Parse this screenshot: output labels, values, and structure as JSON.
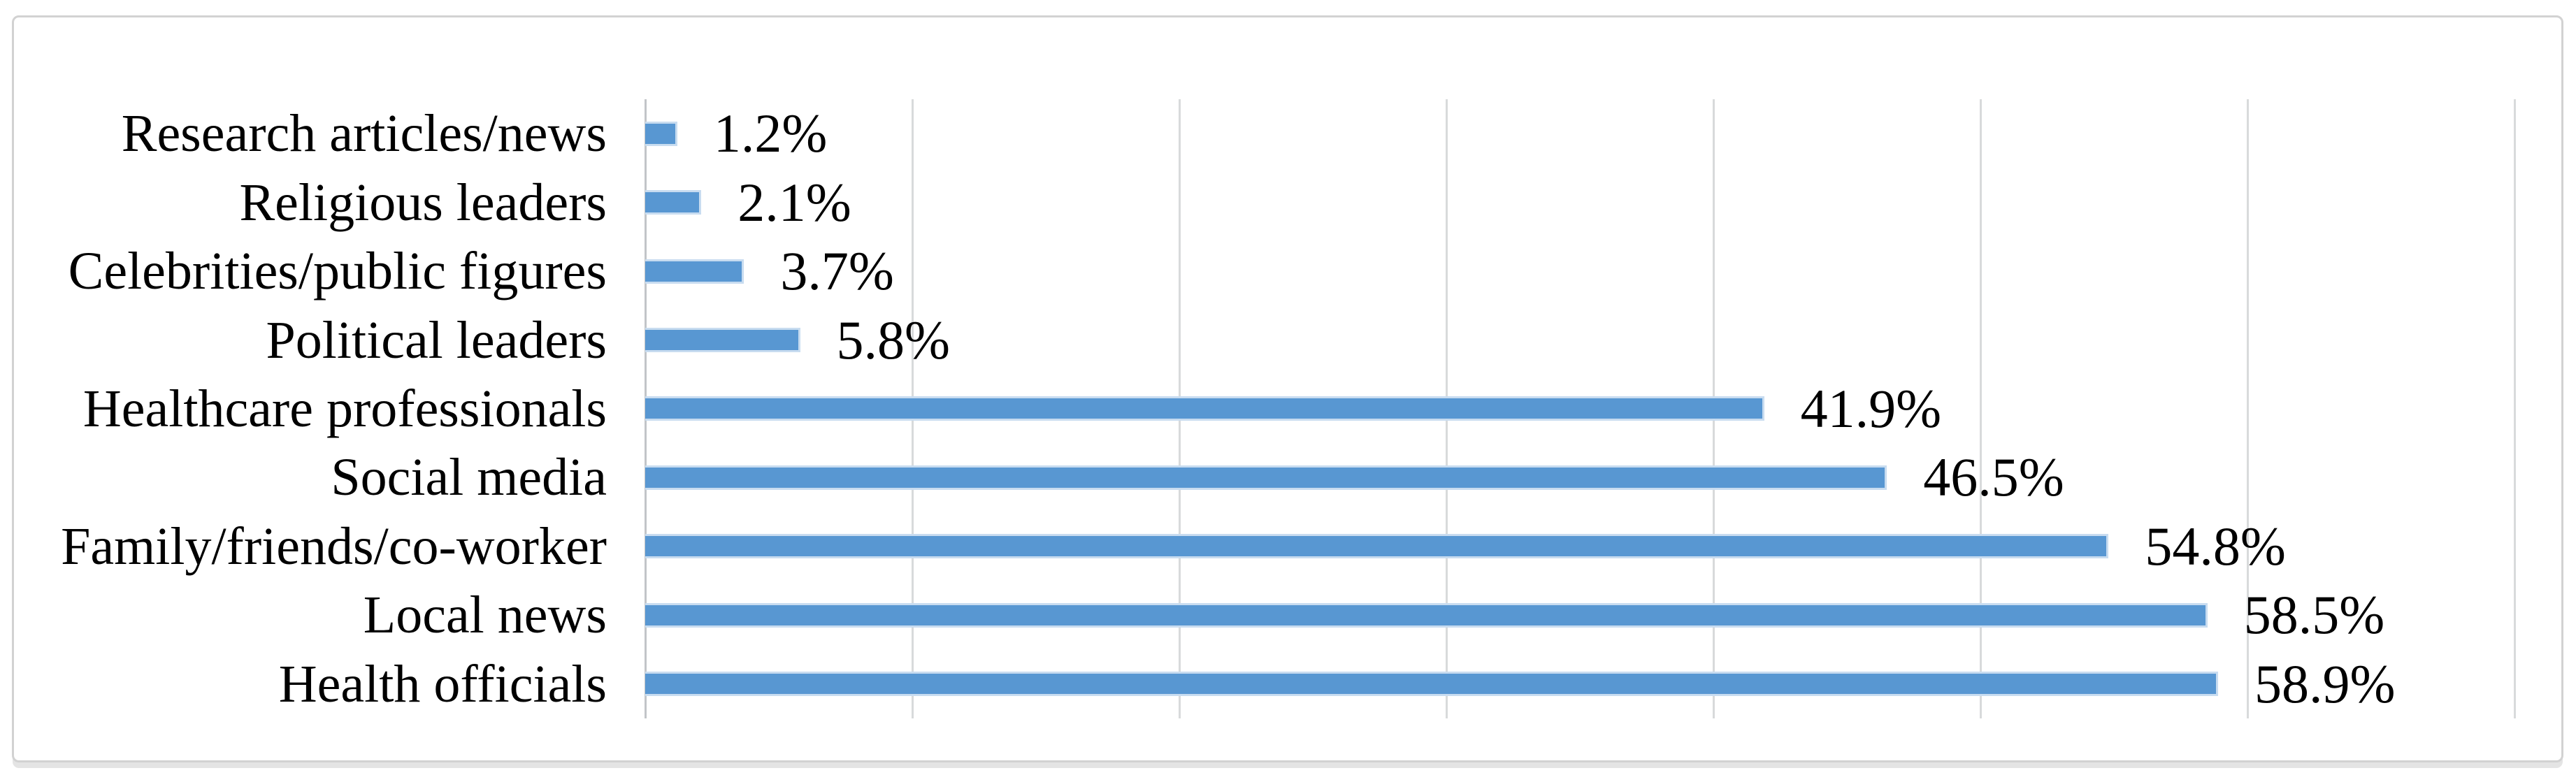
{
  "chart_data": {
    "type": "bar",
    "orientation": "horizontal",
    "title": "",
    "xlabel": "",
    "ylabel": "",
    "categories": [
      "Research articles/news",
      "Religious leaders",
      "Celebrities/public figures",
      "Political leaders",
      "Healthcare professionals",
      "Social media",
      "Family/friends/co-worker",
      "Local news",
      "Health officials"
    ],
    "values": [
      1.2,
      2.1,
      3.7,
      5.8,
      41.9,
      46.5,
      54.8,
      58.5,
      58.9
    ],
    "value_labels": [
      "1.2%",
      "2.1%",
      "3.7%",
      "5.8%",
      "41.9%",
      "46.5%",
      "54.8%",
      "58.5%",
      "58.9%"
    ],
    "xlim": [
      0,
      70
    ],
    "grid_step": 10,
    "grid_on": true,
    "legend": "none",
    "colors": {
      "bar_fill": "#5897d2",
      "bar_edge": "#c8dcf0",
      "gridline": "#d8dadb",
      "axis_line": "#c2c5c8",
      "frame_border": "#d2d2d2",
      "text": "#000000",
      "background": "#ffffff"
    }
  }
}
